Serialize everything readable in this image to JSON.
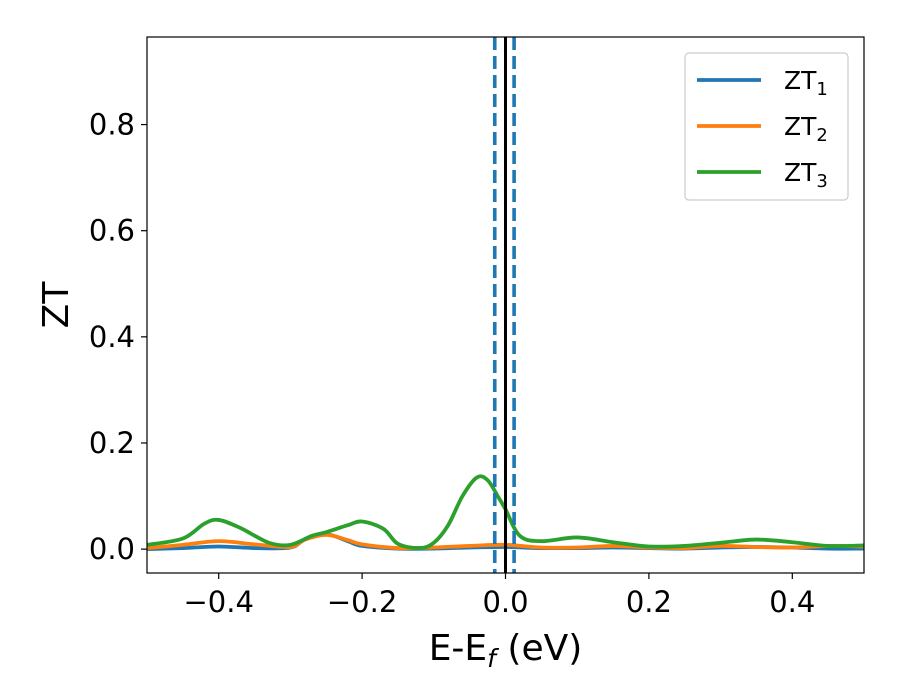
{
  "chart_data": {
    "type": "line",
    "title": "",
    "xlabel": {
      "base": "E-E",
      "sub": "f",
      "tail": " (eV)"
    },
    "ylabel": "ZT",
    "xlim": [
      -0.5,
      0.5
    ],
    "ylim": [
      -0.045,
      0.965
    ],
    "xticks": [
      -0.4,
      -0.2,
      0.0,
      0.2,
      0.4
    ],
    "xtick_labels": [
      "−0.4",
      "−0.2",
      "0.0",
      "0.2",
      "0.4"
    ],
    "yticks": [
      0.0,
      0.2,
      0.4,
      0.6,
      0.8
    ],
    "ytick_labels": [
      "0.0",
      "0.2",
      "0.4",
      "0.6",
      "0.8"
    ],
    "grid": false,
    "legend_position": "top-right",
    "vlines": [
      {
        "x": -0.015,
        "style": "dashed",
        "color": "#1f77b4"
      },
      {
        "x": 0.012,
        "style": "dashed",
        "color": "#1f77b4"
      },
      {
        "x": 0.0,
        "style": "solid",
        "color": "#000000"
      }
    ],
    "series": [
      {
        "name": "ZT",
        "sub": "1",
        "color": "#1f77b4",
        "x": [
          -0.5,
          -0.45,
          -0.4,
          -0.35,
          -0.3,
          -0.28,
          -0.25,
          -0.22,
          -0.2,
          -0.15,
          -0.1,
          -0.05,
          0.0,
          0.05,
          0.1,
          0.15,
          0.2,
          0.25,
          0.3,
          0.35,
          0.4,
          0.45,
          0.5
        ],
        "y": [
          0.0,
          0.002,
          0.005,
          0.002,
          0.003,
          0.018,
          0.028,
          0.015,
          0.006,
          0.001,
          0.001,
          0.003,
          0.004,
          0.002,
          0.002,
          0.003,
          0.002,
          0.001,
          0.003,
          0.004,
          0.003,
          0.001,
          0.001
        ]
      },
      {
        "name": "ZT",
        "sub": "2",
        "color": "#ff7f0e",
        "x": [
          -0.5,
          -0.45,
          -0.4,
          -0.35,
          -0.3,
          -0.28,
          -0.25,
          -0.22,
          -0.2,
          -0.15,
          -0.1,
          -0.05,
          0.0,
          0.05,
          0.1,
          0.15,
          0.2,
          0.25,
          0.3,
          0.35,
          0.4,
          0.45,
          0.5
        ],
        "y": [
          0.002,
          0.008,
          0.015,
          0.009,
          0.004,
          0.018,
          0.027,
          0.017,
          0.009,
          0.002,
          0.003,
          0.006,
          0.008,
          0.003,
          0.003,
          0.006,
          0.003,
          0.002,
          0.006,
          0.004,
          0.003,
          0.006,
          0.005
        ]
      },
      {
        "name": "ZT",
        "sub": "3",
        "color": "#2ca02c",
        "x": [
          -0.5,
          -0.45,
          -0.42,
          -0.4,
          -0.37,
          -0.33,
          -0.3,
          -0.27,
          -0.25,
          -0.22,
          -0.2,
          -0.17,
          -0.15,
          -0.12,
          -0.1,
          -0.08,
          -0.06,
          -0.04,
          -0.025,
          -0.01,
          0.0,
          0.02,
          0.05,
          0.1,
          0.15,
          0.2,
          0.25,
          0.3,
          0.35,
          0.4,
          0.45,
          0.5
        ],
        "y": [
          0.008,
          0.02,
          0.048,
          0.055,
          0.04,
          0.012,
          0.008,
          0.025,
          0.032,
          0.045,
          0.052,
          0.038,
          0.01,
          0.002,
          0.012,
          0.045,
          0.1,
          0.135,
          0.13,
          0.098,
          0.075,
          0.025,
          0.015,
          0.022,
          0.013,
          0.005,
          0.006,
          0.012,
          0.018,
          0.013,
          0.006,
          0.007
        ]
      }
    ]
  }
}
